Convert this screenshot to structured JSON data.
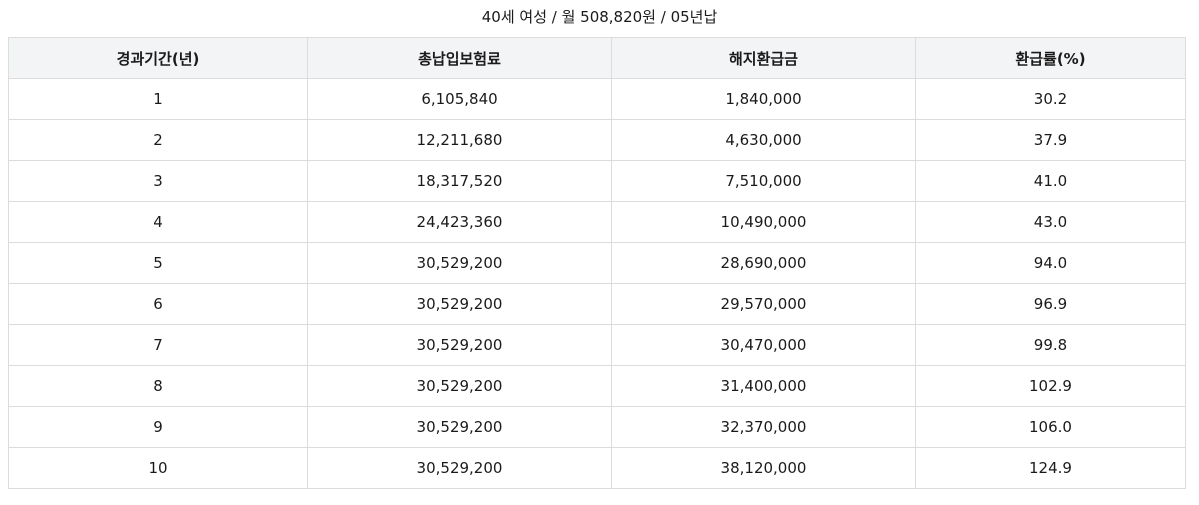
{
  "caption": "40세 여성 / 월 508,820원 / 05년납",
  "table": {
    "headers": [
      "경과기간(년)",
      "총납입보험료",
      "해지환급금",
      "환급률(%)"
    ],
    "rows": [
      [
        "1",
        "6,105,840",
        "1,840,000",
        "30.2"
      ],
      [
        "2",
        "12,211,680",
        "4,630,000",
        "37.9"
      ],
      [
        "3",
        "18,317,520",
        "7,510,000",
        "41.0"
      ],
      [
        "4",
        "24,423,360",
        "10,490,000",
        "43.0"
      ],
      [
        "5",
        "30,529,200",
        "28,690,000",
        "94.0"
      ],
      [
        "6",
        "30,529,200",
        "29,570,000",
        "96.9"
      ],
      [
        "7",
        "30,529,200",
        "30,470,000",
        "99.8"
      ],
      [
        "8",
        "30,529,200",
        "31,400,000",
        "102.9"
      ],
      [
        "9",
        "30,529,200",
        "32,370,000",
        "106.0"
      ],
      [
        "10",
        "30,529,200",
        "38,120,000",
        "124.9"
      ]
    ]
  }
}
